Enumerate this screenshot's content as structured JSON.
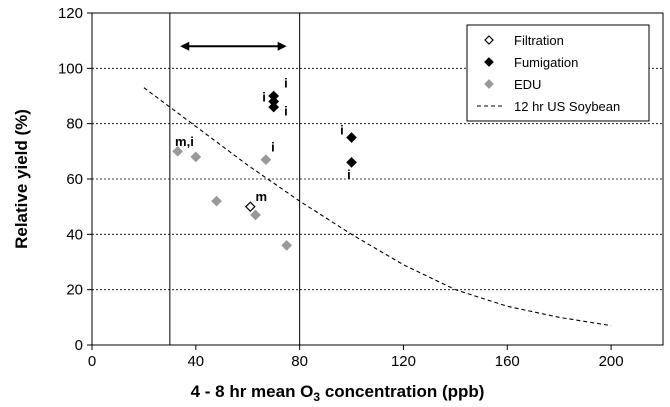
{
  "chart_data": {
    "type": "scatter",
    "xlabel_prefix": "4 - 8 hr mean O",
    "xlabel_sub": "3",
    "xlabel_suffix": " concentration (ppb)",
    "ylabel": "Relative yield (%)",
    "xlim": [
      0,
      220
    ],
    "ylim": [
      0,
      120
    ],
    "xticks": [
      0,
      40,
      80,
      120,
      160,
      200
    ],
    "yticks": [
      0,
      20,
      40,
      60,
      80,
      100,
      120
    ],
    "grid": "horizontal dashed",
    "legend_position": "top-right",
    "vertical_lines": [
      30,
      80
    ],
    "range_arrow": {
      "x1": 34,
      "x2": 75,
      "y": 108
    },
    "series": [
      {
        "name": "Filtration",
        "marker": "open-diamond",
        "color": "#000000",
        "points": [
          [
            61,
            50
          ]
        ]
      },
      {
        "name": "Fumigation",
        "marker": "filled-diamond",
        "color": "#000000",
        "points": [
          [
            70,
            90
          ],
          [
            70,
            88
          ],
          [
            70,
            86
          ],
          [
            100,
            75
          ],
          [
            100,
            66
          ]
        ]
      },
      {
        "name": "EDU",
        "marker": "filled-diamond",
        "color": "#999999",
        "points": [
          [
            33,
            70
          ],
          [
            40,
            68
          ],
          [
            48,
            52
          ],
          [
            63,
            47
          ],
          [
            67,
            67
          ],
          [
            75,
            36
          ]
        ]
      },
      {
        "name": "12 hr US Soybean",
        "marker": "dashed-line",
        "color": "#000000",
        "points": [
          [
            20,
            93
          ],
          [
            40,
            79
          ],
          [
            60,
            65
          ],
          [
            80,
            52
          ],
          [
            100,
            40
          ],
          [
            120,
            29
          ],
          [
            140,
            20
          ],
          [
            160,
            14
          ],
          [
            180,
            10
          ],
          [
            200,
            7
          ]
        ]
      }
    ],
    "annotations": [
      {
        "text": "i",
        "x": 74,
        "y": 93,
        "anchor": "start"
      },
      {
        "text": "i",
        "x": 67,
        "y": 88,
        "anchor": "end"
      },
      {
        "text": "i",
        "x": 74,
        "y": 83,
        "anchor": "start"
      },
      {
        "text": "m,i",
        "x": 32,
        "y": 72,
        "anchor": "start"
      },
      {
        "text": "i",
        "x": 69,
        "y": 70,
        "anchor": "start"
      },
      {
        "text": "m",
        "x": 63,
        "y": 52,
        "anchor": "start"
      },
      {
        "text": "i",
        "x": 97,
        "y": 76,
        "anchor": "end"
      },
      {
        "text": "i",
        "x": 99,
        "y": 60,
        "anchor": "middle"
      }
    ]
  }
}
